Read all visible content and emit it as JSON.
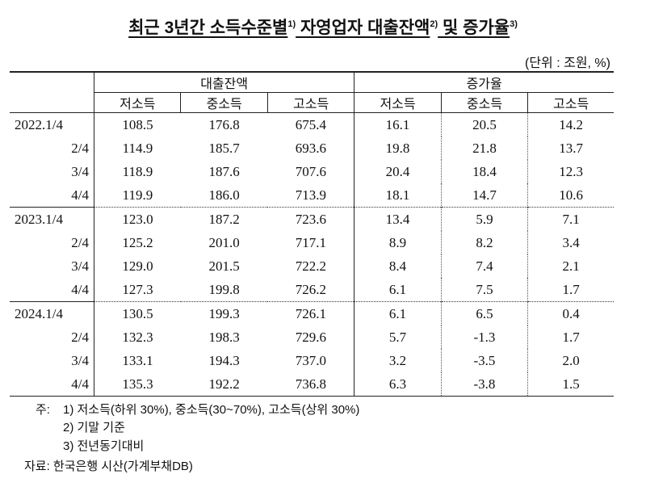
{
  "title": {
    "parts": [
      {
        "text": "최근 3년간 소득수준별",
        "sup": "1)"
      },
      {
        "text": " 자영업자 대출잔액",
        "sup": "2)"
      },
      {
        "text": " 및 증가율",
        "sup": "3)"
      }
    ]
  },
  "unit": "(단위 : 조원, %)",
  "table": {
    "groups": [
      "대출잔액",
      "증가율"
    ],
    "subheaders": [
      "저소득",
      "중소득",
      "고소득",
      "저소득",
      "중소득",
      "고소득"
    ],
    "rows": [
      [
        "2022.1/4",
        "108.5",
        "176.8",
        "675.4",
        "16.1",
        "20.5",
        "14.2"
      ],
      [
        "2/4",
        "114.9",
        "185.7",
        "693.6",
        "19.8",
        "21.8",
        "13.7"
      ],
      [
        "3/4",
        "118.9",
        "187.6",
        "707.6",
        "20.4",
        "18.4",
        "12.3"
      ],
      [
        "4/4",
        "119.9",
        "186.0",
        "713.9",
        "18.1",
        "14.7",
        "10.6"
      ],
      [
        "2023.1/4",
        "123.0",
        "187.2",
        "723.6",
        "13.4",
        "5.9",
        "7.1"
      ],
      [
        "2/4",
        "125.2",
        "201.0",
        "717.1",
        "8.9",
        "8.2",
        "3.4"
      ],
      [
        "3/4",
        "129.0",
        "201.5",
        "722.2",
        "8.4",
        "7.4",
        "2.1"
      ],
      [
        "4/4",
        "127.3",
        "199.8",
        "726.2",
        "6.1",
        "7.5",
        "1.7"
      ],
      [
        "2024.1/4",
        "130.5",
        "199.3",
        "726.1",
        "6.1",
        "6.5",
        "0.4"
      ],
      [
        "2/4",
        "132.3",
        "198.3",
        "729.6",
        "5.7",
        "-1.3",
        "1.7"
      ],
      [
        "3/4",
        "133.1",
        "194.3",
        "737.0",
        "3.2",
        "-3.5",
        "2.0"
      ],
      [
        "4/4",
        "135.3",
        "192.2",
        "736.8",
        "6.3",
        "-3.8",
        "1.5"
      ]
    ]
  },
  "notes": {
    "label": "주:",
    "items": [
      "1) 저소득(하위 30%), 중소득(30~70%), 고소득(상위 30%)",
      "2) 기말 기준",
      "3) 전년동기대비"
    ]
  },
  "source": "자료: 한국은행 시산(가계부채DB)"
}
